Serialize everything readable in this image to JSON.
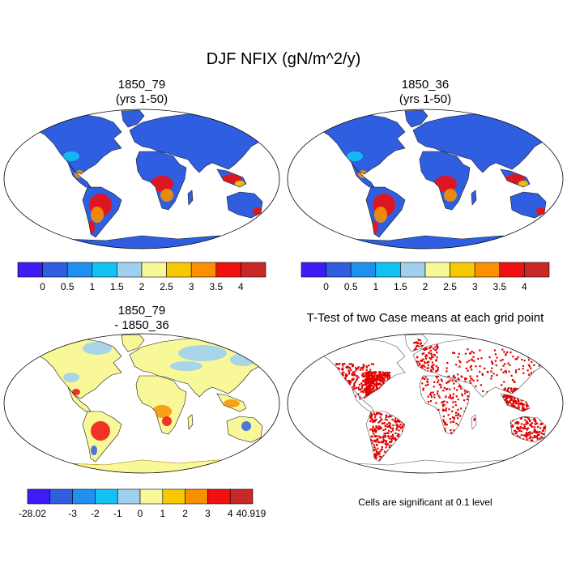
{
  "figure": {
    "title": "DJF NFIX (gN/m^2/y)"
  },
  "panels": [
    {
      "title_line1": "1850_79",
      "title_line2": "(yrs 1-50)",
      "type": "field"
    },
    {
      "title_line1": "1850_36",
      "title_line2": "(yrs 1-50)",
      "type": "field"
    },
    {
      "title_line1": "1850_79",
      "title_line2": "- 1850_36",
      "type": "difference"
    },
    {
      "title_line1": "T-Test of two Case means at each grid point",
      "type": "significance"
    }
  ],
  "colorbars": {
    "field": {
      "colors": [
        "#3d1cf5",
        "#2f5fe0",
        "#1f8ff0",
        "#12c2f2",
        "#9fd0f0",
        "#f8f898",
        "#f8c800",
        "#f89000",
        "#f01010",
        "#c82828"
      ],
      "labels": [
        "0",
        "0.5",
        "1",
        "1.5",
        "2",
        "2.5",
        "3",
        "3.5",
        "4"
      ]
    },
    "difference": {
      "colors": [
        "#3d1cf5",
        "#2f5fe0",
        "#1f8ff0",
        "#12c2f2",
        "#9fd0f0",
        "#f8f898",
        "#f8c800",
        "#f89000",
        "#f01010",
        "#c82828"
      ],
      "labels": [
        "-28.02",
        "-3",
        "-2",
        "-1",
        "0",
        "1",
        "2",
        "3",
        "4",
        "40.919"
      ]
    }
  },
  "significance_note": "Cells are significant at 0.1 level",
  "map_colors": {
    "field_base": "#2f5fe0",
    "field_hot": [
      "#f01010",
      "#f89000",
      "#f8c800",
      "#12c2f2"
    ],
    "diff_base": "#f8f898",
    "diff_cool": "#9fd0f0",
    "diff_hot": [
      "#f01010",
      "#f89000",
      "#2f5fe0"
    ],
    "sig": "#e00000",
    "coast": "#1a1a1a"
  }
}
